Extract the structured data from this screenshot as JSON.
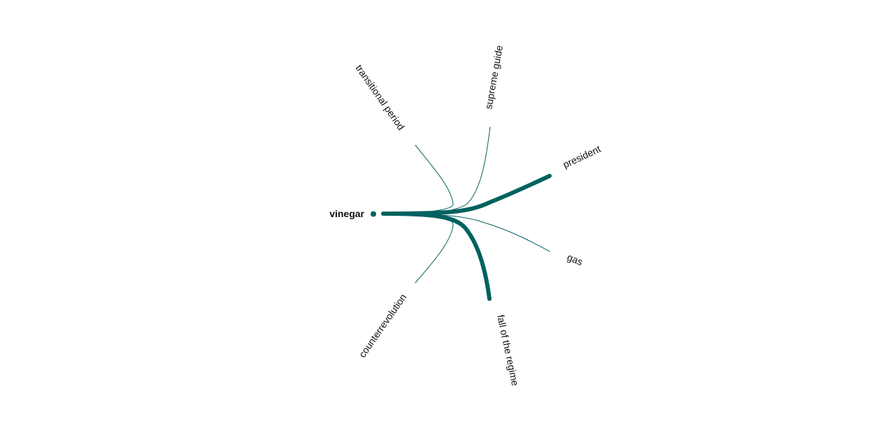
{
  "diagram": {
    "type": "word-tree",
    "accent_color": "#00625F",
    "center": {
      "label": "vinegar"
    },
    "branches": [
      {
        "label": "transitional period",
        "weight": "thin"
      },
      {
        "label": "supreme guide",
        "weight": "thin"
      },
      {
        "label": "president",
        "weight": "thick"
      },
      {
        "label": "gas",
        "weight": "thin"
      },
      {
        "label": "fall of the regime",
        "weight": "thick"
      },
      {
        "label": "counterrevolution",
        "weight": "thin"
      }
    ]
  }
}
